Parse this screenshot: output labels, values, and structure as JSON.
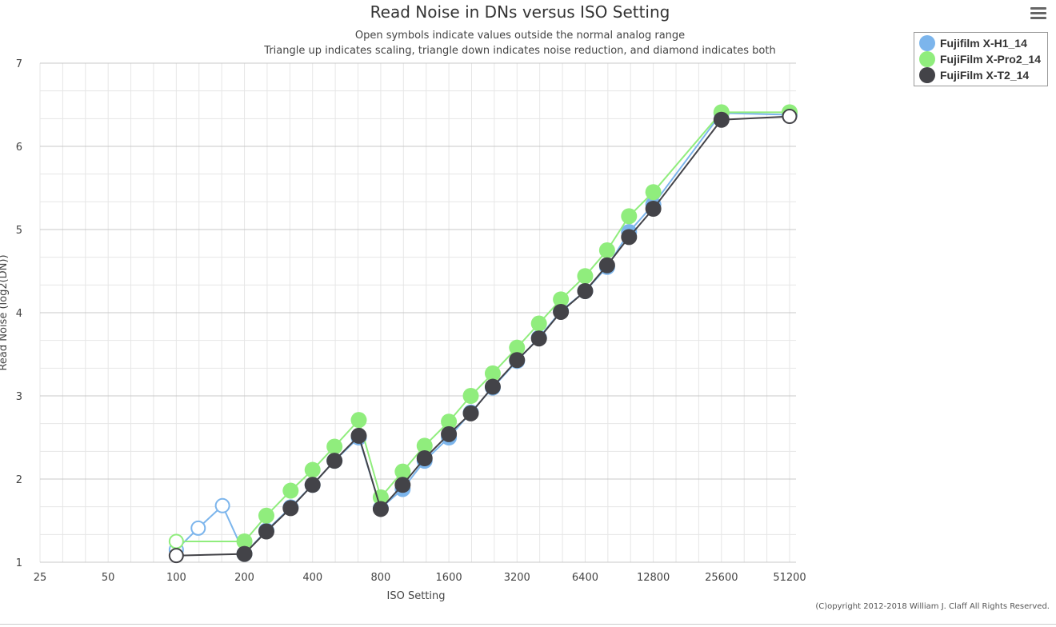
{
  "chart_data": {
    "type": "line",
    "title": "Read Noise in DNs versus ISO Setting",
    "subtitle": [
      "Open symbols indicate values outside the normal analog range",
      "Triangle up indicates scaling, triangle down indicates noise reduction, and diamond indicates both"
    ],
    "xlabel": "ISO Setting",
    "ylabel": "Read Noise (log2(DN))",
    "x_scale": "log2",
    "xlim": [
      25,
      51200
    ],
    "ylim": [
      1,
      7
    ],
    "x_ticks": [
      25,
      50,
      100,
      200,
      400,
      800,
      1600,
      3200,
      6400,
      12800,
      25600,
      51200
    ],
    "y_ticks": [
      1,
      2,
      3,
      4,
      5,
      6,
      7
    ],
    "grid": true,
    "legend_placement": "right",
    "series": [
      {
        "name": "Fujifilm X-H1_14",
        "color": "#7cb5ec",
        "points": [
          [
            100,
            1.15,
            true
          ],
          [
            125,
            1.41,
            true
          ],
          [
            160,
            1.68,
            true
          ],
          [
            200,
            1.1,
            false
          ],
          [
            250,
            1.38,
            false
          ],
          [
            320,
            1.66,
            false
          ],
          [
            400,
            1.93,
            false
          ],
          [
            500,
            2.22,
            false
          ],
          [
            640,
            2.5,
            false
          ],
          [
            800,
            1.65,
            false
          ],
          [
            1000,
            1.88,
            false
          ],
          [
            1250,
            2.22,
            false
          ],
          [
            1600,
            2.5,
            false
          ],
          [
            2000,
            2.8,
            false
          ],
          [
            2500,
            3.1,
            false
          ],
          [
            3200,
            3.42,
            false
          ],
          [
            4000,
            3.7,
            false
          ],
          [
            5000,
            4.02,
            false
          ],
          [
            6400,
            4.26,
            false
          ],
          [
            8000,
            4.55,
            false
          ],
          [
            10000,
            4.97,
            false
          ],
          [
            12800,
            5.3,
            false
          ],
          [
            25600,
            6.4,
            false
          ],
          [
            51200,
            6.38,
            false
          ]
        ]
      },
      {
        "name": "FujiFilm X-Pro2_14",
        "color": "#90ed7d",
        "points": [
          [
            100,
            1.25,
            true
          ],
          [
            200,
            1.25,
            false
          ],
          [
            250,
            1.56,
            false
          ],
          [
            320,
            1.86,
            false
          ],
          [
            400,
            2.11,
            false
          ],
          [
            500,
            2.39,
            false
          ],
          [
            640,
            2.71,
            false
          ],
          [
            800,
            1.78,
            false
          ],
          [
            1000,
            2.09,
            false
          ],
          [
            1250,
            2.4,
            false
          ],
          [
            1600,
            2.69,
            false
          ],
          [
            2000,
            3.0,
            false
          ],
          [
            2500,
            3.27,
            false
          ],
          [
            3200,
            3.58,
            false
          ],
          [
            4000,
            3.87,
            false
          ],
          [
            5000,
            4.16,
            false
          ],
          [
            6400,
            4.44,
            false
          ],
          [
            8000,
            4.75,
            false
          ],
          [
            10000,
            5.16,
            false
          ],
          [
            12800,
            5.45,
            false
          ],
          [
            25600,
            6.41,
            false
          ],
          [
            51200,
            6.41,
            false
          ]
        ]
      },
      {
        "name": "FujiFilm X-T2_14",
        "color": "#434348",
        "points": [
          [
            100,
            1.08,
            true
          ],
          [
            200,
            1.1,
            false
          ],
          [
            250,
            1.37,
            false
          ],
          [
            320,
            1.65,
            false
          ],
          [
            400,
            1.93,
            false
          ],
          [
            500,
            2.22,
            false
          ],
          [
            640,
            2.52,
            false
          ],
          [
            800,
            1.64,
            false
          ],
          [
            1000,
            1.93,
            false
          ],
          [
            1250,
            2.25,
            false
          ],
          [
            1600,
            2.54,
            false
          ],
          [
            2000,
            2.79,
            false
          ],
          [
            2500,
            3.11,
            false
          ],
          [
            3200,
            3.43,
            false
          ],
          [
            4000,
            3.69,
            false
          ],
          [
            5000,
            4.01,
            false
          ],
          [
            6400,
            4.26,
            false
          ],
          [
            8000,
            4.57,
            false
          ],
          [
            10000,
            4.91,
            false
          ],
          [
            12800,
            5.25,
            false
          ],
          [
            25600,
            6.32,
            false
          ],
          [
            51200,
            6.36,
            true
          ]
        ]
      }
    ]
  },
  "copyright": "(C)opyright 2012-2018 William J. Claff All Rights Reserved.",
  "menu_icon": "hamburger-menu-icon"
}
